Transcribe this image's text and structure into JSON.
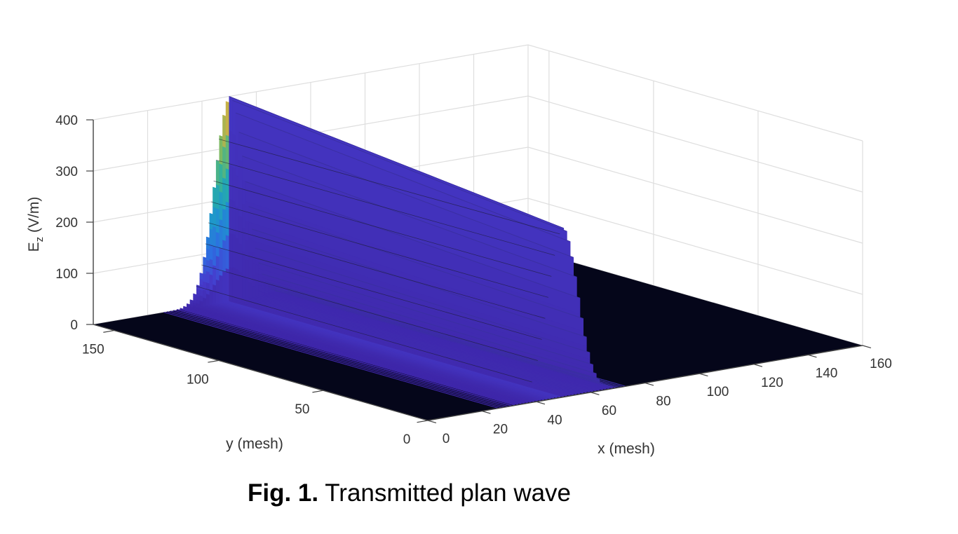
{
  "caption": {
    "label": "Fig. 1.",
    "text": " Transmitted plan wave"
  },
  "chart_data": {
    "type": "surface",
    "title": "",
    "xlabel": "x (mesh)",
    "ylabel": "y (mesh)",
    "zlabel_main": "E",
    "zlabel_sub": "z",
    "zlabel_unit": " (V/m)",
    "xlim": [
      0,
      160
    ],
    "ylim": [
      0,
      160
    ],
    "zlim": [
      0,
      400
    ],
    "x_ticks": [
      "0",
      "20",
      "40",
      "60",
      "80",
      "100",
      "120",
      "140",
      "160"
    ],
    "y_ticks": [
      "0",
      "50",
      "100",
      "150"
    ],
    "z_ticks": [
      "0",
      "100",
      "200",
      "300",
      "400"
    ],
    "grid": true,
    "colormap": "parula",
    "colors": {
      "floor": "#05061a",
      "peak_low": "#3b2fa3",
      "peak_high": "#c9bd3d"
    },
    "wave": {
      "orientation": "constant along y, varies along x",
      "center_x": 50,
      "width_x": 8,
      "peak_at_y0": 330,
      "peak_at_y160": 400
    }
  }
}
